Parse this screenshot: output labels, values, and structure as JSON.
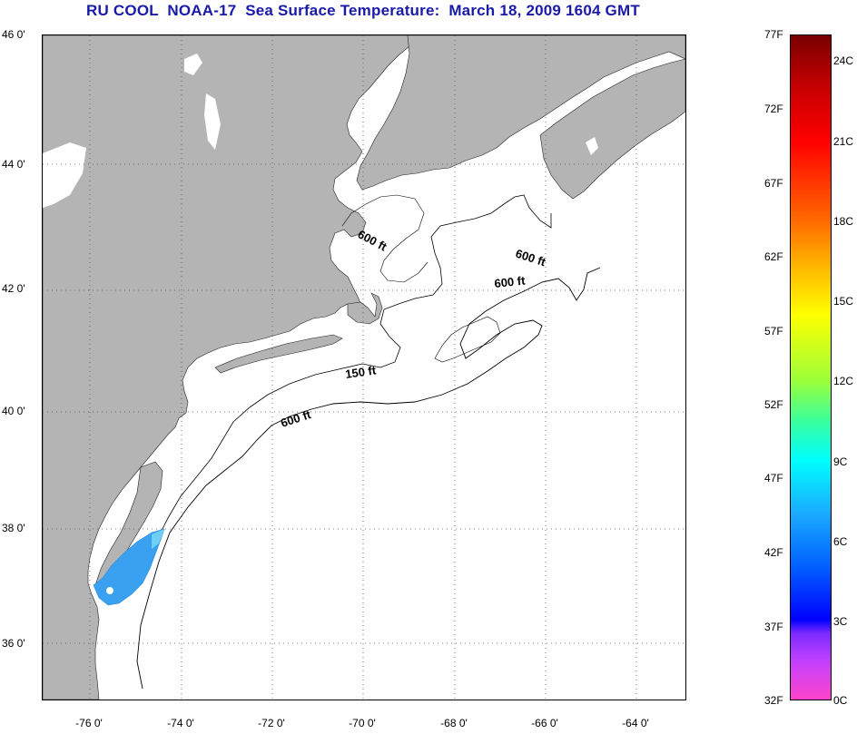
{
  "title": "RU COOL  NOAA-17  Sea Surface Temperature:  March 18, 2009 1604 GMT",
  "lat_labels": [
    "46 0'",
    "44 0'",
    "42 0'",
    "40 0'",
    "38 0'",
    "36 0'"
  ],
  "lon_labels": [
    "-76 0'",
    "-74 0'",
    "-72 0'",
    "-70 0'",
    "-68 0'",
    "-66 0'",
    "-64 0'"
  ],
  "contour_labels": [
    "600 ft",
    "600 ft",
    "600 ft",
    "150 ft",
    "600 ft"
  ],
  "colorbar": {
    "f_labels": [
      "77F",
      "72F",
      "67F",
      "62F",
      "57F",
      "52F",
      "47F",
      "42F",
      "37F",
      "32F"
    ],
    "c_labels": [
      "24C",
      "21C",
      "18C",
      "15C",
      "12C",
      "9C",
      "6C",
      "3C",
      "0C"
    ]
  },
  "colors": {
    "land": "#b4b4b4",
    "ocean": "#ffffff",
    "title": "#1a1aaa",
    "sst_patch": "#3aa0f0"
  }
}
